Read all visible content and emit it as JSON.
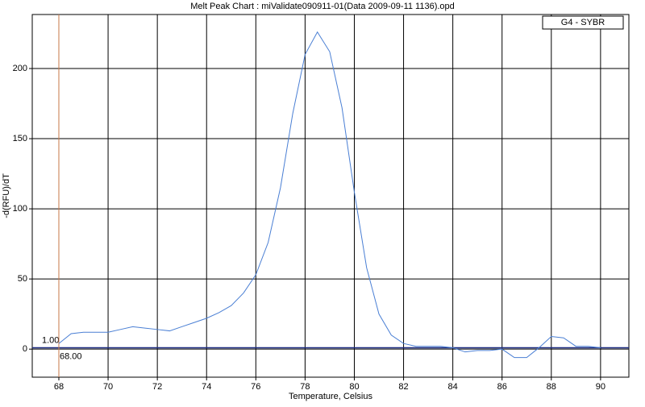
{
  "chart_data": {
    "type": "line",
    "title": "Melt Peak Chart : miValidate090911-01(Data 2009-09-11 1136).opd",
    "x_label": "Temperature, Celsius",
    "y_label": "-d(RFU)/dT",
    "x": [
      68,
      68.5,
      69,
      69.5,
      70,
      70.5,
      71,
      71.5,
      72,
      72.5,
      73,
      73.5,
      74,
      74.5,
      75,
      75.5,
      76,
      76.5,
      77,
      77.5,
      78,
      78.5,
      79,
      79.5,
      80,
      80.5,
      81,
      81.5,
      82,
      82.5,
      83,
      83.5,
      84,
      84.5,
      85,
      85.5,
      86,
      86.5,
      87,
      87.5,
      88,
      88.5,
      89,
      89.5,
      90
    ],
    "series": [
      {
        "name": "G4 - SYBR",
        "color": "#4a7fd4",
        "values": [
          4,
          11,
          12,
          12,
          12,
          14,
          16,
          15,
          14,
          13,
          16,
          19,
          22,
          26,
          31,
          40,
          53,
          76,
          115,
          168,
          210,
          226,
          212,
          172,
          112,
          58,
          25,
          10,
          4,
          2,
          2,
          2,
          1,
          -2,
          -1,
          -1,
          0,
          -6,
          -6,
          1,
          9,
          8,
          2,
          2,
          1
        ]
      }
    ],
    "threshold": {
      "value": 1,
      "label": "1.00",
      "color": "#1a2a80"
    },
    "marker": {
      "value": 68,
      "label": "68.00",
      "color": "#d08050"
    },
    "xlim": [
      66.92,
      91.15
    ],
    "ylim": [
      -20,
      238.5
    ],
    "xticks": [
      68,
      70,
      72,
      74,
      76,
      78,
      80,
      82,
      84,
      86,
      88,
      90
    ],
    "yticks": [
      0,
      50,
      100,
      150,
      200
    ],
    "grid": true,
    "legend": "upper right"
  }
}
